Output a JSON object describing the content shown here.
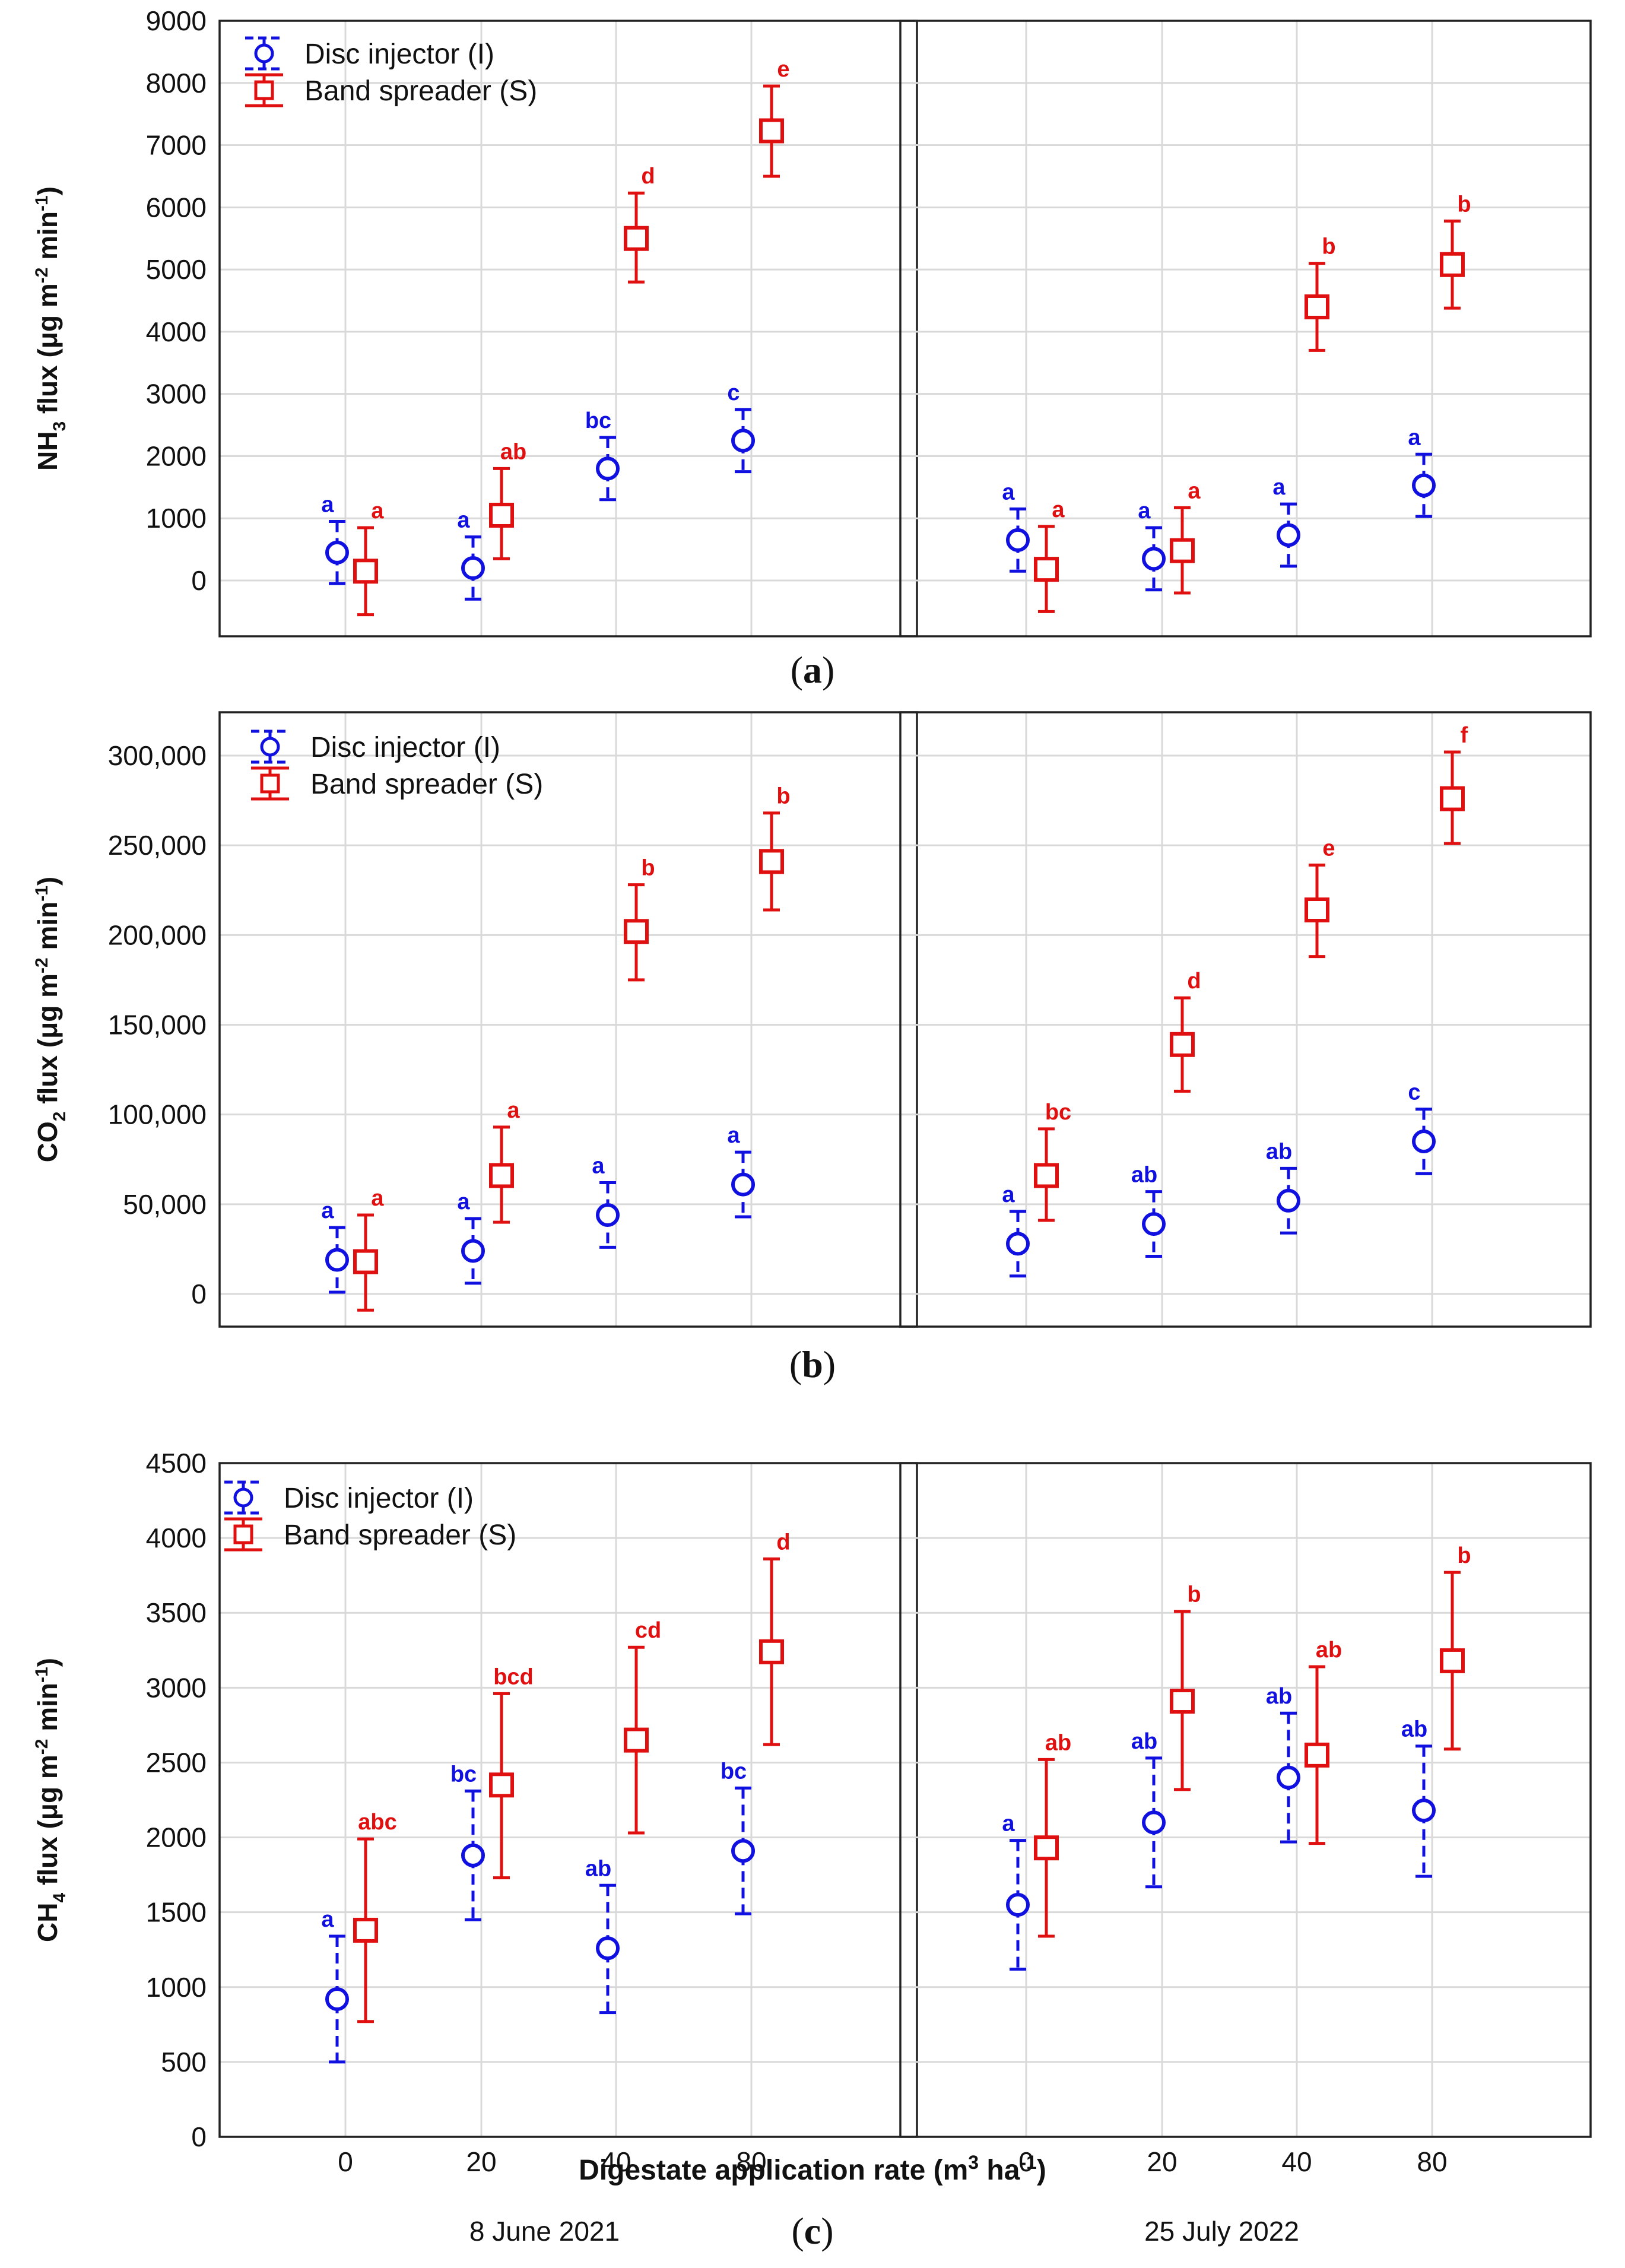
{
  "colors": {
    "injector": "#1010e0",
    "spreader": "#e01010",
    "grid": "#d9d9d9",
    "axis": "#222222"
  },
  "x_axis": {
    "label_prefix": "Digestate application rate (m",
    "label_sup": "3",
    "label_suffix": " ha",
    "label_sup2": "-1",
    "label_close": ")",
    "dates": [
      "8 June 2021",
      "25 July 2022"
    ]
  },
  "legend": {
    "injector": "Disc injector (I)",
    "spreader": "Band spreader (S)"
  },
  "chart_data": [
    {
      "type": "scatter",
      "caption": "a",
      "ylabel": {
        "pre": "NH",
        "sub": "3",
        "mid": " flux (μg m",
        "sup1": "-2",
        "mid2": " min",
        "sup2": "-1",
        "post": ")"
      },
      "ylim": [
        -900,
        9000
      ],
      "yticks": [
        "0",
        "1000",
        "2000",
        "3000",
        "4000",
        "5000",
        "6000",
        "7000",
        "8000",
        "9000"
      ],
      "categories": [
        "0",
        "20",
        "40",
        "80"
      ],
      "panels": [
        {
          "date": "8 June 2021",
          "series": [
            {
              "name": "Disc injector (I)",
              "values": [
                450,
                200,
                1800,
                2250
              ],
              "lower": [
                -50,
                -300,
                1300,
                1750
              ],
              "upper": [
                950,
                700,
                2300,
                2750
              ],
              "letters": [
                "a",
                "a",
                "bc",
                "c"
              ]
            },
            {
              "name": "Band spreader (S)",
              "values": [
                150,
                1050,
                5500,
                7230
              ],
              "lower": [
                -550,
                350,
                4800,
                6500
              ],
              "upper": [
                850,
                1800,
                6230,
                7950
              ],
              "letters": [
                "a",
                "ab",
                "d",
                "e"
              ]
            }
          ]
        },
        {
          "date": "25 July 2022",
          "series": [
            {
              "name": "Disc injector (I)",
              "values": [
                650,
                350,
                730,
                1530
              ],
              "lower": [
                150,
                -150,
                230,
                1030
              ],
              "upper": [
                1150,
                850,
                1230,
                2030
              ],
              "letters": [
                "a",
                "a",
                "a",
                "a"
              ]
            },
            {
              "name": "Band spreader (S)",
              "values": [
                180,
                480,
                4400,
                5080
              ],
              "lower": [
                -500,
                -200,
                3700,
                4380
              ],
              "upper": [
                870,
                1170,
                5100,
                5780
              ],
              "letters": [
                "a",
                "a",
                "b",
                "b"
              ]
            }
          ]
        }
      ]
    },
    {
      "type": "scatter",
      "caption": "b",
      "ylabel": {
        "pre": "CO",
        "sub": "2",
        "mid": " flux (μg m",
        "sup1": "-2",
        "mid2": " min",
        "sup2": "-1",
        "post": ")"
      },
      "ylim": [
        -20000,
        320000
      ],
      "yticks": [
        "0",
        "50,000",
        "100,000",
        "150,000",
        "200,000",
        "250,000",
        "300,000"
      ],
      "categories": [
        "0",
        "20",
        "40",
        "80"
      ],
      "panels": [
        {
          "date": "8 June 2021",
          "series": [
            {
              "name": "Disc injector (I)",
              "values": [
                19000,
                24000,
                44000,
                61000
              ],
              "lower": [
                1000,
                6000,
                26000,
                43000
              ],
              "upper": [
                37000,
                42000,
                62000,
                79000
              ],
              "letters": [
                "a",
                "a",
                "a",
                "a"
              ]
            },
            {
              "name": "Band spreader (S)",
              "values": [
                18000,
                66000,
                202000,
                241000
              ],
              "lower": [
                -9000,
                40000,
                175000,
                214000
              ],
              "upper": [
                44000,
                93000,
                228000,
                268000
              ],
              "letters": [
                "a",
                "a",
                "b",
                "b"
              ]
            }
          ]
        },
        {
          "date": "25 July 2022",
          "series": [
            {
              "name": "Disc injector (I)",
              "values": [
                28000,
                39000,
                52000,
                85000
              ],
              "lower": [
                10000,
                21000,
                34000,
                67000
              ],
              "upper": [
                46000,
                57000,
                70000,
                103000
              ],
              "letters": [
                "a",
                "ab",
                "ab",
                "c"
              ]
            },
            {
              "name": "Band spreader (S)",
              "values": [
                66000,
                139000,
                214000,
                276000
              ],
              "lower": [
                41000,
                113000,
                188000,
                251000
              ],
              "upper": [
                92000,
                165000,
                239000,
                302000
              ],
              "letters": [
                "bc",
                "d",
                "e",
                "f"
              ]
            }
          ]
        }
      ]
    },
    {
      "type": "scatter",
      "caption": "c",
      "ylabel": {
        "pre": "CH",
        "sub": "4",
        "mid": " flux (μg m",
        "sup1": "-2",
        "mid2": " min",
        "sup2": "-1",
        "post": ")"
      },
      "ylim": [
        0,
        4500
      ],
      "yticks": [
        "0",
        "500",
        "1000",
        "1500",
        "2000",
        "2500",
        "3000",
        "3500",
        "4000",
        "4500"
      ],
      "categories": [
        "0",
        "20",
        "40",
        "80"
      ],
      "panels": [
        {
          "date": "8 June 2021",
          "series": [
            {
              "name": "Disc injector (I)",
              "values": [
                920,
                1880,
                1260,
                1910
              ],
              "lower": [
                500,
                1450,
                830,
                1490
              ],
              "upper": [
                1340,
                2310,
                1680,
                2330
              ],
              "letters": [
                "a",
                "bc",
                "ab",
                "bc"
              ]
            },
            {
              "name": "Band spreader (S)",
              "values": [
                1380,
                2350,
                2650,
                3240
              ],
              "lower": [
                770,
                1730,
                2030,
                2620
              ],
              "upper": [
                1990,
                2960,
                3270,
                3860
              ],
              "letters": [
                "abc",
                "bcd",
                "cd",
                "d"
              ]
            }
          ]
        },
        {
          "date": "25 July 2022",
          "series": [
            {
              "name": "Disc injector (I)",
              "values": [
                1550,
                2100,
                2400,
                2180
              ],
              "lower": [
                1120,
                1670,
                1970,
                1740
              ],
              "upper": [
                1980,
                2530,
                2830,
                2610
              ],
              "letters": [
                "a",
                "ab",
                "ab",
                "ab"
              ]
            },
            {
              "name": "Band spreader (S)",
              "values": [
                1930,
                2910,
                2550,
                3180
              ],
              "lower": [
                1340,
                2320,
                1960,
                2590
              ],
              "upper": [
                2520,
                3510,
                3140,
                3770
              ],
              "letters": [
                "ab",
                "b",
                "ab",
                "b"
              ]
            }
          ]
        }
      ]
    }
  ]
}
